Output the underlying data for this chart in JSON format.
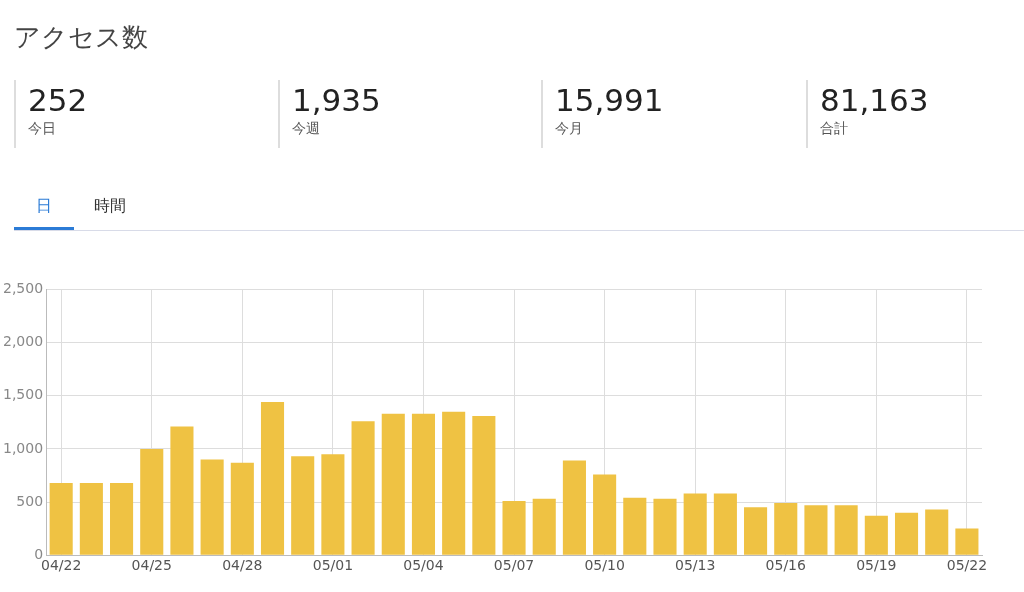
{
  "chart_data": {
    "type": "bar",
    "title": "アクセス数",
    "annotations": [
      "252",
      "今日",
      "1,935",
      "今週",
      "15,991",
      "今月",
      "81,163",
      "合計",
      "日",
      "時間"
    ],
    "categories": [
      "04/22",
      null,
      null,
      "04/25",
      null,
      null,
      "04/28",
      null,
      null,
      "05/01",
      null,
      null,
      "05/04",
      null,
      null,
      "05/07",
      null,
      null,
      "05/10",
      null,
      null,
      "05/13",
      null,
      null,
      "05/16",
      null,
      null,
      "05/19",
      null,
      null,
      "05/22"
    ],
    "values": [
      680,
      680,
      680,
      1000,
      1210,
      900,
      870,
      1440,
      930,
      950,
      1260,
      1330,
      1330,
      1350,
      1310,
      510,
      530,
      890,
      760,
      540,
      530,
      580,
      580,
      450,
      490,
      470,
      470,
      370,
      400,
      430,
      252
    ],
    "color": "#efc243",
    "ylim": [
      0,
      2500
    ],
    "yticks": [
      0,
      500,
      {
        "value": 1000,
        "label": "1,000"
      },
      {
        "value": 1500,
        "label": "1,500"
      },
      {
        "value": 2000,
        "label": "2,000"
      },
      {
        "value": 2500,
        "label": "2,500"
      }
    ],
    "grid": true
  }
}
